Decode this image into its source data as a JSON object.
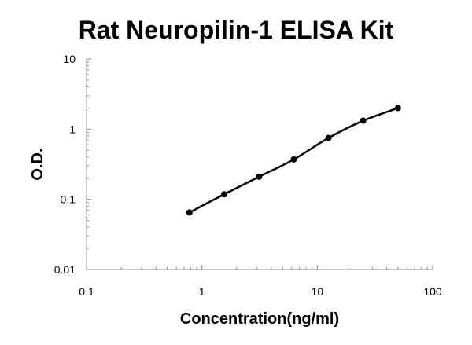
{
  "chart_data": {
    "type": "scatter",
    "title": "Rat Neuropilin-1 ELISA Kit",
    "xlabel": "Concentration(ng/ml)",
    "ylabel": "O.D.",
    "x_scale": "log",
    "y_scale": "log",
    "xlim": [
      0.1,
      100
    ],
    "ylim": [
      0.01,
      10
    ],
    "x_ticks": [
      0.1,
      1,
      10,
      100
    ],
    "x_tick_labels": [
      "0.1",
      "1",
      "10",
      "100"
    ],
    "y_ticks": [
      0.01,
      0.1,
      1,
      10
    ],
    "y_tick_labels": [
      "0.01",
      "0.1",
      "1",
      "10"
    ],
    "grid": false,
    "legend": "none",
    "series": [
      {
        "x": [
          0.78,
          1.56,
          3.13,
          6.25,
          12.5,
          25,
          50
        ],
        "y": [
          0.065,
          0.118,
          0.21,
          0.37,
          0.75,
          1.32,
          2.0
        ],
        "marker": "circle",
        "line": "smooth fitted curve",
        "color": "#000000"
      }
    ]
  }
}
